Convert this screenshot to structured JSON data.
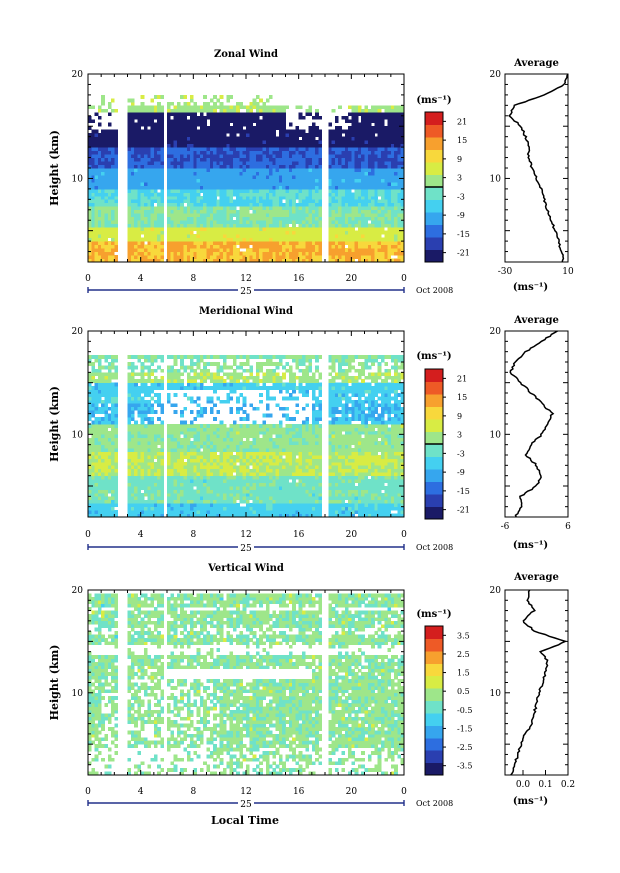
{
  "figure": {
    "xlabel": "Local Time",
    "date_label": "Oct 2008",
    "day_label": "25"
  },
  "colors": {
    "colormap": [
      "#1a1a66",
      "#2a3fb0",
      "#2d6ee0",
      "#36a6ee",
      "#44d0f0",
      "#6fe2c8",
      "#9ee68a",
      "#d8ec44",
      "#f8d83c",
      "#f7a02e",
      "#ee5a26",
      "#d41e1e"
    ],
    "mask_gap": "#ffffff"
  },
  "chart_data": [
    {
      "type": "heatmap",
      "title": "Zonal Wind",
      "ylabel": "Height (km)",
      "unit_label": "(ms⁻¹)",
      "x_ticks": [
        "0",
        "4",
        "8",
        "12",
        "16",
        "20",
        "0"
      ],
      "xlim": [
        0,
        24
      ],
      "y_ticks": [
        "10",
        "20"
      ],
      "ylim": [
        2,
        20
      ],
      "colorbar": {
        "ticks": [
          "21",
          "15",
          "9",
          "3",
          "-3",
          "-9",
          "-15",
          "-21"
        ],
        "range": [
          -24,
          24
        ],
        "contour_value": 0
      },
      "profile": {
        "title": "Average",
        "x_ticks": [
          "-30",
          "10"
        ],
        "xlim": [
          -30,
          10
        ],
        "y_ticks": [
          "10",
          "20"
        ],
        "xlabel": "(ms⁻¹)",
        "heights": [
          2,
          3,
          4,
          5,
          6,
          7,
          8,
          9,
          10,
          11,
          12,
          13,
          14,
          15,
          16,
          17,
          18,
          19,
          20
        ],
        "values": [
          7,
          6,
          4,
          2,
          -1,
          -3,
          -5,
          -7,
          -10,
          -13,
          -15,
          -15,
          -17,
          -20,
          -27,
          -24,
          -5,
          8,
          10
        ]
      }
    },
    {
      "type": "heatmap",
      "title": "Meridional Wind",
      "ylabel": "Height (km)",
      "unit_label": "(ms⁻¹)",
      "x_ticks": [
        "0",
        "4",
        "8",
        "12",
        "16",
        "20",
        "0"
      ],
      "xlim": [
        0,
        24
      ],
      "y_ticks": [
        "10",
        "20"
      ],
      "ylim": [
        2,
        20
      ],
      "colorbar": {
        "ticks": [
          "21",
          "15",
          "9",
          "3",
          "-3",
          "-9",
          "-15",
          "-21"
        ],
        "range": [
          -24,
          24
        ],
        "contour_value": 0
      },
      "profile": {
        "title": "Average",
        "x_ticks": [
          "-6",
          "6"
        ],
        "xlim": [
          -6,
          6
        ],
        "y_ticks": [
          "10",
          "20"
        ],
        "xlabel": "(ms⁻¹)",
        "heights": [
          2,
          3,
          4,
          5,
          6,
          7,
          8,
          9,
          10,
          11,
          12,
          13,
          14,
          15,
          16,
          17,
          18,
          19,
          20
        ],
        "values": [
          -4,
          -3,
          -3,
          0,
          1,
          0,
          -2,
          -1,
          1,
          2,
          3,
          1,
          -1,
          -3,
          -5,
          -4,
          -2,
          1,
          4
        ]
      }
    },
    {
      "type": "heatmap",
      "title": "Vertical Wind",
      "ylabel": "Height (km)",
      "unit_label": "(ms⁻¹)",
      "x_ticks": [
        "0",
        "4",
        "8",
        "12",
        "16",
        "20",
        "0"
      ],
      "xlim": [
        0,
        24
      ],
      "y_ticks": [
        "10",
        "20"
      ],
      "ylim": [
        2,
        20
      ],
      "colorbar": {
        "ticks": [
          "3.5",
          "2.5",
          "1.5",
          "0.5",
          "-0.5",
          "-1.5",
          "-2.5",
          "-3.5"
        ],
        "range": [
          -4,
          4
        ],
        "contour_value": null
      },
      "profile": {
        "title": "Average",
        "x_ticks": [
          "0.0",
          "0.1",
          "0.2"
        ],
        "xlim": [
          -0.08,
          0.2
        ],
        "y_ticks": [
          "10",
          "20"
        ],
        "xlabel": "(ms⁻¹)",
        "heights": [
          2,
          3,
          4,
          5,
          6,
          7,
          8,
          9,
          10,
          11,
          12,
          13,
          14,
          15,
          16,
          17,
          18,
          19,
          20
        ],
        "values": [
          -0.05,
          -0.04,
          -0.02,
          -0.01,
          0.01,
          0.04,
          0.05,
          0.06,
          0.07,
          0.09,
          0.1,
          0.11,
          0.08,
          0.19,
          0.05,
          0.0,
          0.05,
          0.02,
          0.03
        ]
      }
    }
  ]
}
